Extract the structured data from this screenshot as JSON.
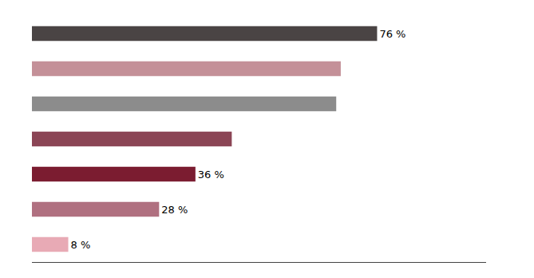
{
  "chart_data": {
    "type": "bar",
    "orientation": "horizontal",
    "categories": [
      null,
      null,
      null,
      null,
      null,
      null,
      null
    ],
    "values": [
      76,
      68,
      67,
      44,
      36,
      28,
      8
    ],
    "colors": [
      "#4a4444",
      "#c49098",
      "#8c8c8c",
      "#8b4555",
      "#7b1c30",
      "#b07080",
      "#e8aab5"
    ],
    "data_labels": true,
    "value_labels": [
      "76 %",
      null,
      null,
      null,
      "36 %",
      "28 %",
      "8 %"
    ],
    "xlim": [
      0,
      100
    ],
    "grid": false,
    "tick_labels": false
  }
}
